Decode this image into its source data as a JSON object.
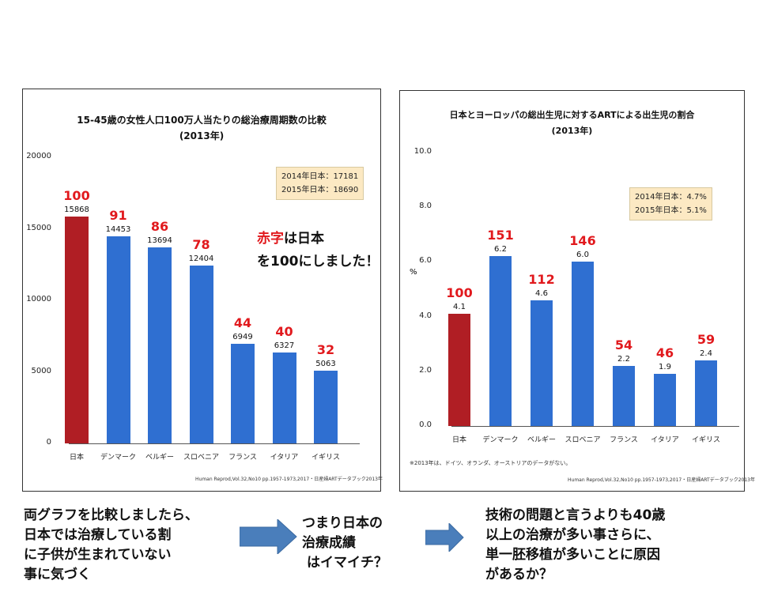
{
  "chart_data": [
    {
      "type": "bar",
      "title": "15-45歳の女性人口100万人当たりの総治療周期数の比較",
      "subtitle": "(2013年)",
      "categories": [
        "日本",
        "デンマーク",
        "ベルギー",
        "スロベニア",
        "フランス",
        "イタリア",
        "イギリス"
      ],
      "values": [
        15868,
        14453,
        13694,
        12404,
        6949,
        6327,
        5063
      ],
      "value_labels": [
        "15868",
        "14453",
        "13694",
        "12404",
        "6949",
        "6327",
        "5063"
      ],
      "index_labels": [
        "100",
        "91",
        "86",
        "78",
        "44",
        "40",
        "32"
      ],
      "highlight": [
        true,
        false,
        false,
        false,
        false,
        false,
        false
      ],
      "ylim": [
        0,
        20000
      ],
      "yticks": [
        "0",
        "5000",
        "10000",
        "15000",
        "20000"
      ],
      "ytick_values": [
        0,
        5000,
        10000,
        15000,
        20000
      ],
      "ylabel": "",
      "legend": [
        "2014年日本：17181",
        "2015年日本：18690"
      ],
      "source": "Human Reprod,Vol.32,No10 pp.1957-1973,2017・日産婦ARTデータブック2013年"
    },
    {
      "type": "bar",
      "title": "日本とヨーロッパの総出生児に対するARTによる出生児の割合",
      "subtitle": "(2013年)",
      "categories": [
        "日本",
        "デンマーク",
        "ベルギー",
        "スロベニア",
        "フランス",
        "イタリア",
        "イギリス"
      ],
      "values": [
        4.1,
        6.2,
        4.6,
        6.0,
        2.2,
        1.9,
        2.4
      ],
      "value_labels": [
        "4.1",
        "6.2",
        "4.6",
        "6.0",
        "2.2",
        "1.9",
        "2.4"
      ],
      "index_labels": [
        "100",
        "151",
        "112",
        "146",
        "54",
        "46",
        "59"
      ],
      "highlight": [
        true,
        false,
        false,
        false,
        false,
        false,
        false
      ],
      "ylim": [
        0,
        10
      ],
      "yticks": [
        "0.0",
        "2.0",
        "4.0",
        "6.0",
        "8.0",
        "10.0"
      ],
      "ytick_values": [
        0,
        2,
        4,
        6,
        8,
        10
      ],
      "ylabel": "%",
      "legend": [
        "2014年日本：4.7%",
        "2015年日本：5.1%"
      ],
      "note": "※2013年は、ドイツ、オランダ、オーストリアのデータがない。",
      "source": "Human Reprod,Vol.32,No10 pp.1957-1973,2017・日産婦ARTデータブック2013年"
    }
  ],
  "annotation": {
    "red_part": "赤字",
    "line1_rest": "は日本",
    "line2": "を100にしました！"
  },
  "bottom": {
    "left": [
      "両グラフを比較しましたら、",
      "日本では治療している割",
      "に子供が生まれていない",
      "事に気づく"
    ],
    "middle": [
      "つまり日本の",
      "治療成績",
      "はイマイチ？"
    ],
    "right": [
      "技術の問題と言うよりも40歳",
      "以上の治療が多い事さらに、",
      "単一胚移植が多いことに原因",
      "があるか？"
    ]
  },
  "colors": {
    "bar_blue": "#2f6fd1",
    "bar_red": "#b01e24",
    "index_red": "#e1191d",
    "arrow": "#4a7ebb"
  }
}
